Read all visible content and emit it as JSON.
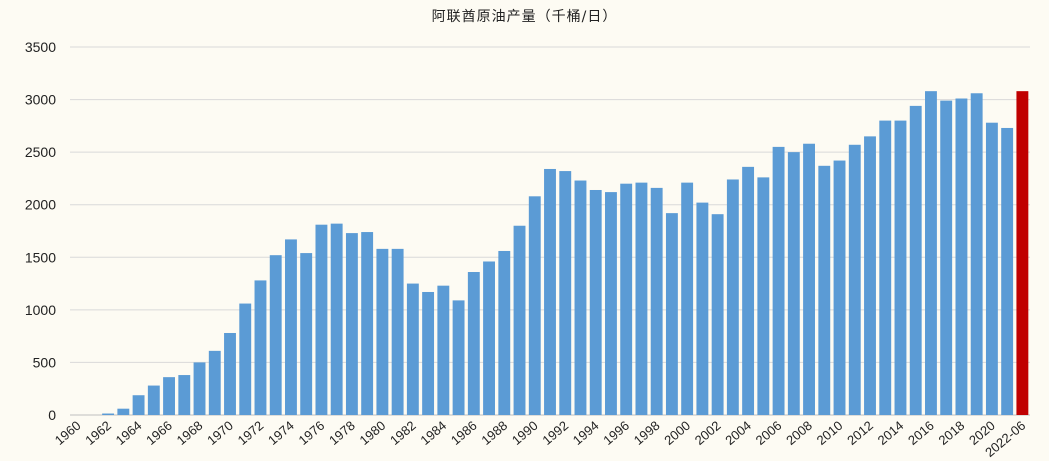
{
  "chart_data": {
    "type": "bar",
    "title": "阿联酋原油产量（千桶/日）",
    "xlabel": "",
    "ylabel": "",
    "ylim": [
      0,
      3500
    ],
    "yticks": [
      0,
      500,
      1000,
      1500,
      2000,
      2500,
      3000,
      3500
    ],
    "grid": true,
    "legend": "none",
    "colors": {
      "default": "#5b9bd5",
      "highlight": "#c00000"
    },
    "categories": [
      "1960",
      "1961",
      "1962",
      "1963",
      "1964",
      "1965",
      "1966",
      "1967",
      "1968",
      "1969",
      "1970",
      "1971",
      "1972",
      "1973",
      "1974",
      "1975",
      "1976",
      "1977",
      "1978",
      "1979",
      "1980",
      "1981",
      "1982",
      "1983",
      "1984",
      "1985",
      "1986",
      "1987",
      "1988",
      "1989",
      "1990",
      "1991",
      "1992",
      "1993",
      "1994",
      "1995",
      "1996",
      "1997",
      "1998",
      "1999",
      "2000",
      "2001",
      "2002",
      "2003",
      "2004",
      "2005",
      "2006",
      "2007",
      "2008",
      "2009",
      "2010",
      "2011",
      "2012",
      "2013",
      "2014",
      "2015",
      "2016",
      "2017",
      "2018",
      "2019",
      "2020",
      "2021",
      "2022-06"
    ],
    "values": [
      0,
      0,
      14,
      60,
      188,
      280,
      360,
      380,
      500,
      610,
      780,
      1060,
      1280,
      1520,
      1670,
      1540,
      1810,
      1820,
      1730,
      1740,
      1580,
      1580,
      1250,
      1170,
      1230,
      1090,
      1360,
      1460,
      1560,
      1800,
      2080,
      2340,
      2320,
      2230,
      2140,
      2120,
      2200,
      2210,
      2160,
      1920,
      2210,
      2020,
      1910,
      2240,
      2360,
      2260,
      2550,
      2500,
      2580,
      2370,
      2420,
      2570,
      2650,
      2800,
      2800,
      2940,
      3080,
      2990,
      3010,
      3060,
      2780,
      2730,
      3080
    ],
    "highlight_index": 62,
    "tick_labels": [
      "1960",
      "1962",
      "1964",
      "1966",
      "1968",
      "1970",
      "1972",
      "1974",
      "1976",
      "1978",
      "1980",
      "1982",
      "1984",
      "1986",
      "1988",
      "1990",
      "1992",
      "1994",
      "1996",
      "1998",
      "2000",
      "2002",
      "2004",
      "2006",
      "2008",
      "2010",
      "2012",
      "2014",
      "2016",
      "2018",
      "2020",
      "2022-06"
    ]
  }
}
